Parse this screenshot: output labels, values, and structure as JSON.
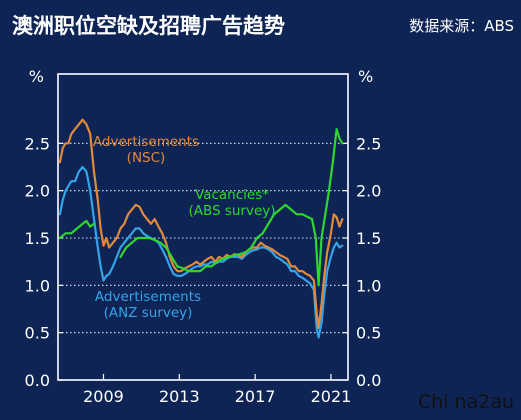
{
  "header": {
    "title": "澳洲职位空缺及招聘广告趋势",
    "source": "数据来源：ABS"
  },
  "watermark": "Chi na2au",
  "colors": {
    "background": "#0d2455",
    "frame": "#ffffff",
    "grid": "#ffffff",
    "nsc": "#e28a3c",
    "anz": "#36a3e8",
    "vacancies": "#2fd62f",
    "title": "#ffffff",
    "label": "#ffffff"
  },
  "chart_data": {
    "type": "line",
    "title": "澳洲职位空缺及招聘广告趋势",
    "xlabel": "",
    "ylabel": "%",
    "ylabel_right": "%",
    "xlim": [
      2006.6,
      2021.9
    ],
    "ylim": [
      0,
      3.0
    ],
    "x_ticks": [
      2009,
      2013,
      2017,
      2021
    ],
    "x_tick_labels": [
      "2009",
      "2013",
      "2017",
      "2021"
    ],
    "y_ticks": [
      0,
      0.5,
      1.0,
      1.5,
      2.0,
      2.5
    ],
    "y_tick_labels": [
      "0.0",
      "0.5",
      "1.0",
      "1.5",
      "2.0",
      "2.5"
    ],
    "grid": "horizontal dotted",
    "dual_axis": true,
    "annotations": [
      {
        "series": "nsc",
        "lines": [
          "Advertisements",
          "(NSC)"
        ]
      },
      {
        "series": "vacancies",
        "lines": [
          "Vacancies*",
          "(ABS survey)"
        ]
      },
      {
        "series": "anz",
        "lines": [
          "Advertisements",
          "(ANZ survey)"
        ]
      }
    ],
    "series": [
      {
        "id": "nsc",
        "x": [
          2006.7,
          2006.85,
          2007.0,
          2007.15,
          2007.3,
          2007.5,
          2007.7,
          2007.9,
          2008.1,
          2008.3,
          2008.5,
          2008.7,
          2008.85,
          2009.0,
          2009.15,
          2009.3,
          2009.5,
          2009.7,
          2009.9,
          2010.1,
          2010.3,
          2010.5,
          2010.7,
          2010.9,
          2011.1,
          2011.3,
          2011.5,
          2011.7,
          2011.9,
          2012.1,
          2012.3,
          2012.5,
          2012.7,
          2012.9,
          2013.1,
          2013.3,
          2013.5,
          2013.7,
          2013.9,
          2014.1,
          2014.3,
          2014.5,
          2014.7,
          2014.9,
          2015.1,
          2015.3,
          2015.5,
          2015.7,
          2015.9,
          2016.1,
          2016.3,
          2016.5,
          2016.7,
          2016.9,
          2017.1,
          2017.3,
          2017.5,
          2017.7,
          2017.9,
          2018.1,
          2018.3,
          2018.5,
          2018.7,
          2018.9,
          2019.1,
          2019.3,
          2019.5,
          2019.7,
          2019.9,
          2020.1,
          2020.25,
          2020.35,
          2020.5,
          2020.65,
          2020.8,
          2021.0,
          2021.15,
          2021.3,
          2021.45,
          2021.6
        ],
        "values": [
          2.3,
          2.45,
          2.5,
          2.5,
          2.6,
          2.65,
          2.7,
          2.75,
          2.7,
          2.6,
          2.2,
          1.9,
          1.6,
          1.42,
          1.5,
          1.4,
          1.45,
          1.5,
          1.6,
          1.65,
          1.75,
          1.8,
          1.85,
          1.83,
          1.75,
          1.7,
          1.65,
          1.7,
          1.62,
          1.55,
          1.45,
          1.3,
          1.2,
          1.15,
          1.15,
          1.18,
          1.2,
          1.22,
          1.25,
          1.22,
          1.25,
          1.28,
          1.3,
          1.25,
          1.3,
          1.28,
          1.32,
          1.3,
          1.33,
          1.32,
          1.3,
          1.35,
          1.38,
          1.4,
          1.4,
          1.45,
          1.42,
          1.4,
          1.38,
          1.35,
          1.32,
          1.3,
          1.28,
          1.2,
          1.2,
          1.15,
          1.15,
          1.12,
          1.1,
          1.05,
          0.7,
          0.55,
          0.8,
          1.1,
          1.35,
          1.55,
          1.75,
          1.72,
          1.62,
          1.7
        ]
      },
      {
        "id": "anz",
        "x": [
          2006.7,
          2006.85,
          2007.0,
          2007.15,
          2007.3,
          2007.5,
          2007.7,
          2007.9,
          2008.1,
          2008.3,
          2008.5,
          2008.7,
          2008.85,
          2009.0,
          2009.15,
          2009.3,
          2009.5,
          2009.7,
          2009.9,
          2010.1,
          2010.3,
          2010.5,
          2010.7,
          2010.9,
          2011.1,
          2011.3,
          2011.5,
          2011.7,
          2011.9,
          2012.1,
          2012.3,
          2012.5,
          2012.7,
          2012.9,
          2013.1,
          2013.3,
          2013.5,
          2013.7,
          2013.9,
          2014.1,
          2014.3,
          2014.5,
          2014.7,
          2014.9,
          2015.1,
          2015.3,
          2015.5,
          2015.7,
          2015.9,
          2016.1,
          2016.3,
          2016.5,
          2016.7,
          2016.9,
          2017.1,
          2017.3,
          2017.5,
          2017.7,
          2017.9,
          2018.1,
          2018.3,
          2018.5,
          2018.7,
          2018.9,
          2019.1,
          2019.3,
          2019.5,
          2019.7,
          2019.9,
          2020.1,
          2020.25,
          2020.35,
          2020.5,
          2020.65,
          2020.8,
          2021.0,
          2021.15,
          2021.3,
          2021.45,
          2021.6
        ],
        "values": [
          1.75,
          1.9,
          2.0,
          2.05,
          2.1,
          2.1,
          2.2,
          2.25,
          2.2,
          2.0,
          1.7,
          1.4,
          1.2,
          1.05,
          1.1,
          1.12,
          1.2,
          1.3,
          1.4,
          1.45,
          1.5,
          1.55,
          1.6,
          1.6,
          1.55,
          1.52,
          1.5,
          1.48,
          1.45,
          1.38,
          1.3,
          1.2,
          1.12,
          1.1,
          1.1,
          1.12,
          1.15,
          1.18,
          1.2,
          1.2,
          1.22,
          1.22,
          1.25,
          1.23,
          1.25,
          1.25,
          1.28,
          1.3,
          1.3,
          1.3,
          1.28,
          1.32,
          1.35,
          1.37,
          1.38,
          1.4,
          1.4,
          1.38,
          1.35,
          1.3,
          1.28,
          1.25,
          1.22,
          1.15,
          1.15,
          1.1,
          1.08,
          1.05,
          1.02,
          0.95,
          0.55,
          0.45,
          0.6,
          0.9,
          1.15,
          1.3,
          1.4,
          1.45,
          1.4,
          1.42
        ]
      },
      {
        "id": "vacancies",
        "segments": [
          {
            "x": [
              2006.7,
              2007.0,
              2007.3,
              2007.6,
              2007.9,
              2008.1,
              2008.3,
              2008.5
            ],
            "values": [
              1.5,
              1.55,
              1.55,
              1.6,
              1.65,
              1.68,
              1.62,
              1.65
            ]
          },
          {
            "x": [
              2009.9,
              2010.2,
              2010.5,
              2010.8,
              2011.1,
              2011.4,
              2011.7,
              2012.0,
              2012.3,
              2012.6,
              2012.9,
              2013.2,
              2013.5,
              2013.8,
              2014.1,
              2014.4,
              2014.7,
              2015.0,
              2015.3,
              2015.6,
              2015.9,
              2016.2,
              2016.5,
              2016.8,
              2017.1,
              2017.4,
              2017.7,
              2018.0,
              2018.3,
              2018.6,
              2018.9,
              2019.2,
              2019.5,
              2019.8,
              2020.0,
              2020.2,
              2020.35,
              2020.5,
              2020.7,
              2020.9,
              2021.1,
              2021.3,
              2021.45,
              2021.6
            ],
            "values": [
              1.3,
              1.4,
              1.45,
              1.5,
              1.5,
              1.5,
              1.48,
              1.45,
              1.4,
              1.3,
              1.2,
              1.18,
              1.15,
              1.15,
              1.15,
              1.2,
              1.2,
              1.25,
              1.28,
              1.3,
              1.32,
              1.33,
              1.35,
              1.4,
              1.5,
              1.55,
              1.65,
              1.75,
              1.8,
              1.85,
              1.8,
              1.75,
              1.75,
              1.72,
              1.7,
              1.5,
              1.0,
              1.5,
              1.75,
              2.0,
              2.3,
              2.65,
              2.55,
              2.5
            ]
          }
        ]
      }
    ]
  }
}
